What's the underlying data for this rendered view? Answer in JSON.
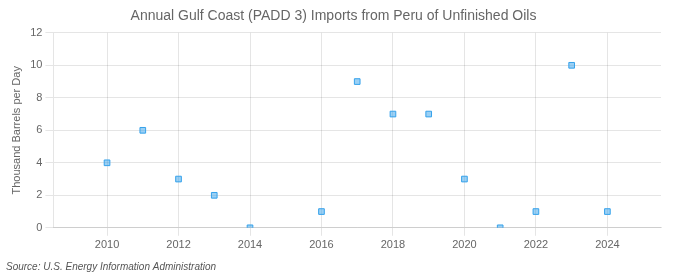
{
  "chart_data": {
    "type": "scatter",
    "title": "Annual Gulf Coast (PADD 3) Imports from Peru of Unfinished Oils",
    "y_label": "Thousand Barrels per Day",
    "annotations": [
      "Source: U.S. Energy Information Administration"
    ],
    "x": [
      2010,
      2011,
      2012,
      2013,
      2014,
      2016,
      2017,
      2018,
      2019,
      2020,
      2021,
      2022,
      2023,
      2024
    ],
    "values": [
      4,
      6,
      3,
      2,
      0,
      1,
      9,
      7,
      7,
      3,
      0,
      1,
      10,
      1
    ],
    "marker": "square",
    "xlim": [
      2008.5,
      2025.5
    ],
    "xticks": [
      2010,
      2012,
      2014,
      2016,
      2018,
      2020,
      2022,
      2024
    ],
    "ylim": [
      0,
      12
    ],
    "yticks": [
      0,
      2,
      4,
      6,
      8,
      10,
      12
    ],
    "grid": true
  }
}
